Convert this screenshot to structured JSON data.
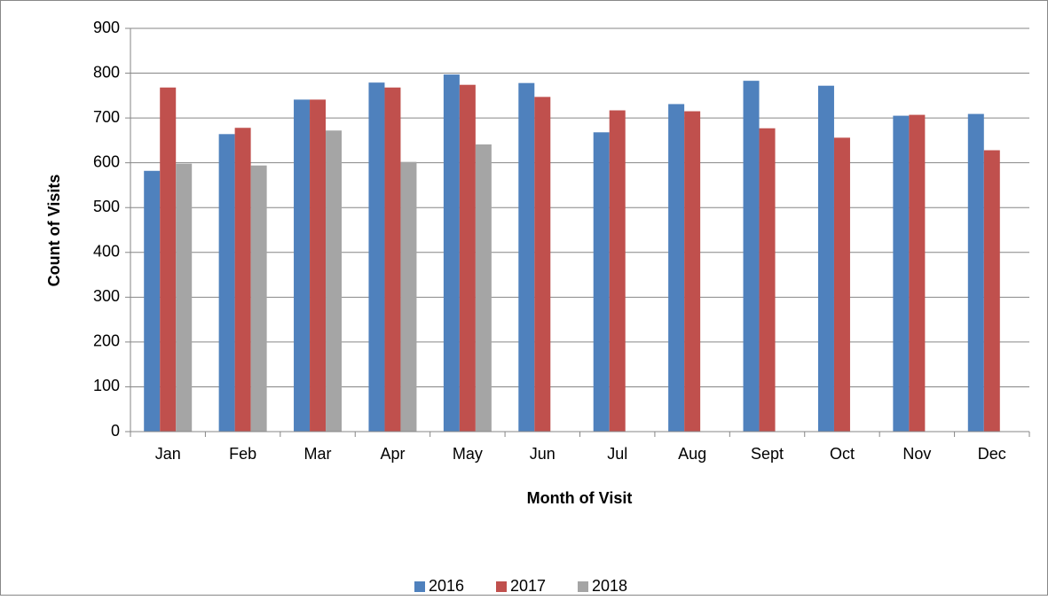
{
  "chart_data": {
    "type": "bar",
    "x_label": "Month of Visit",
    "y_label": "Count of Visits",
    "categories": [
      "Jan",
      "Feb",
      "Mar",
      "Apr",
      "May",
      "Jun",
      "Jul",
      "Aug",
      "Sept",
      "Oct",
      "Nov",
      "Dec"
    ],
    "series": [
      {
        "name": "2016",
        "color": "#4f81bd",
        "values": [
          582,
          664,
          741,
          779,
          797,
          778,
          668,
          731,
          783,
          772,
          705,
          709
        ]
      },
      {
        "name": "2017",
        "color": "#c0504d",
        "values": [
          768,
          678,
          741,
          768,
          774,
          747,
          717,
          715,
          677,
          656,
          707,
          628
        ]
      },
      {
        "name": "2018",
        "color": "#a5a5a5",
        "values": [
          598,
          594,
          672,
          602,
          641,
          null,
          null,
          null,
          null,
          null,
          null,
          null
        ]
      }
    ],
    "ylim": [
      0,
      900
    ],
    "yticks": [
      0,
      100,
      200,
      300,
      400,
      500,
      600,
      700,
      800,
      900
    ],
    "grid": true,
    "legend": "bottom"
  }
}
